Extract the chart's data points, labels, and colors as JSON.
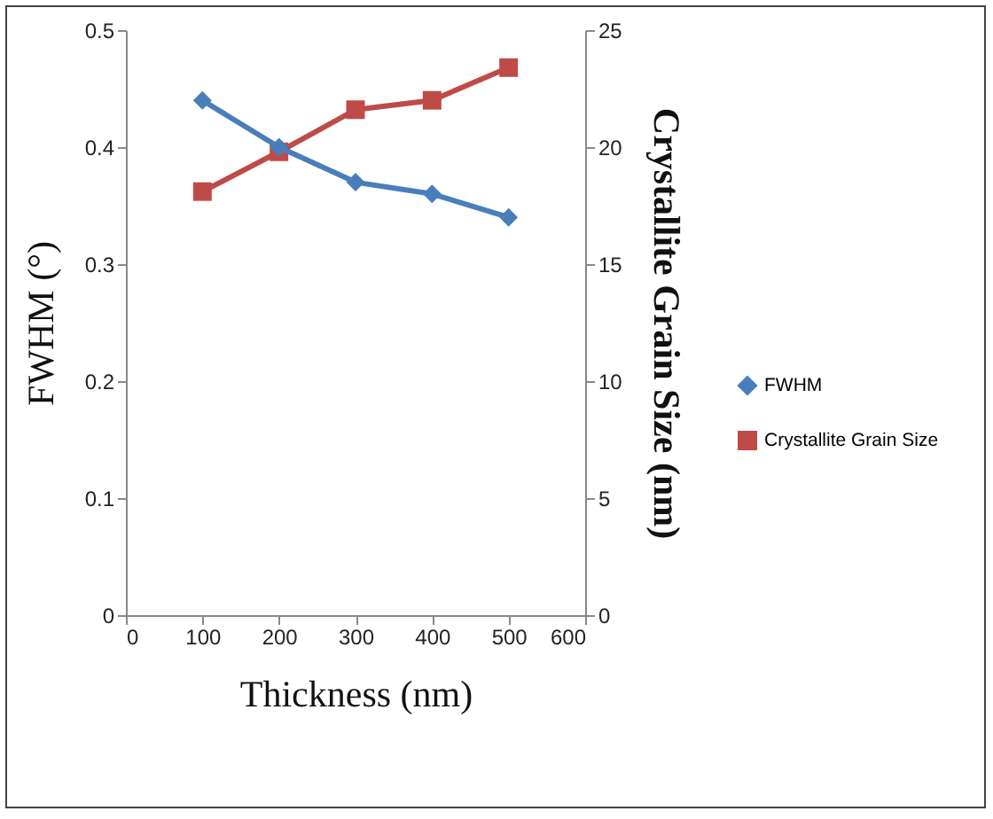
{
  "chart_data": {
    "type": "line",
    "xlabel": "Thickness (nm)",
    "ylabel": "FWHM (°)",
    "y2label": "Crystallite Grain Size (nm)",
    "x": [
      100,
      200,
      300,
      400,
      500
    ],
    "series": [
      {
        "name": "FWHM",
        "color": "#4a7ebb",
        "marker": "diamond",
        "values": [
          0.44,
          0.4,
          0.37,
          0.36,
          0.34
        ]
      },
      {
        "name": "Crystallite Grain Size",
        "color": "#be4b48",
        "marker": "square",
        "axis": "y2",
        "values": [
          18.1,
          19.8,
          21.6,
          22.0,
          23.4
        ]
      }
    ],
    "xlim": [
      0,
      600
    ],
    "xticks": [
      0,
      100,
      200,
      300,
      400,
      500,
      600
    ],
    "ylim": [
      0,
      0.5
    ],
    "yticks": [
      0,
      0.1,
      0.2,
      0.3,
      0.4,
      0.5
    ],
    "y2lim": [
      0,
      25
    ],
    "y2ticks": [
      0,
      5,
      10,
      15,
      20,
      25
    ],
    "grid": false,
    "legend": "right",
    "line_style": "solid"
  }
}
